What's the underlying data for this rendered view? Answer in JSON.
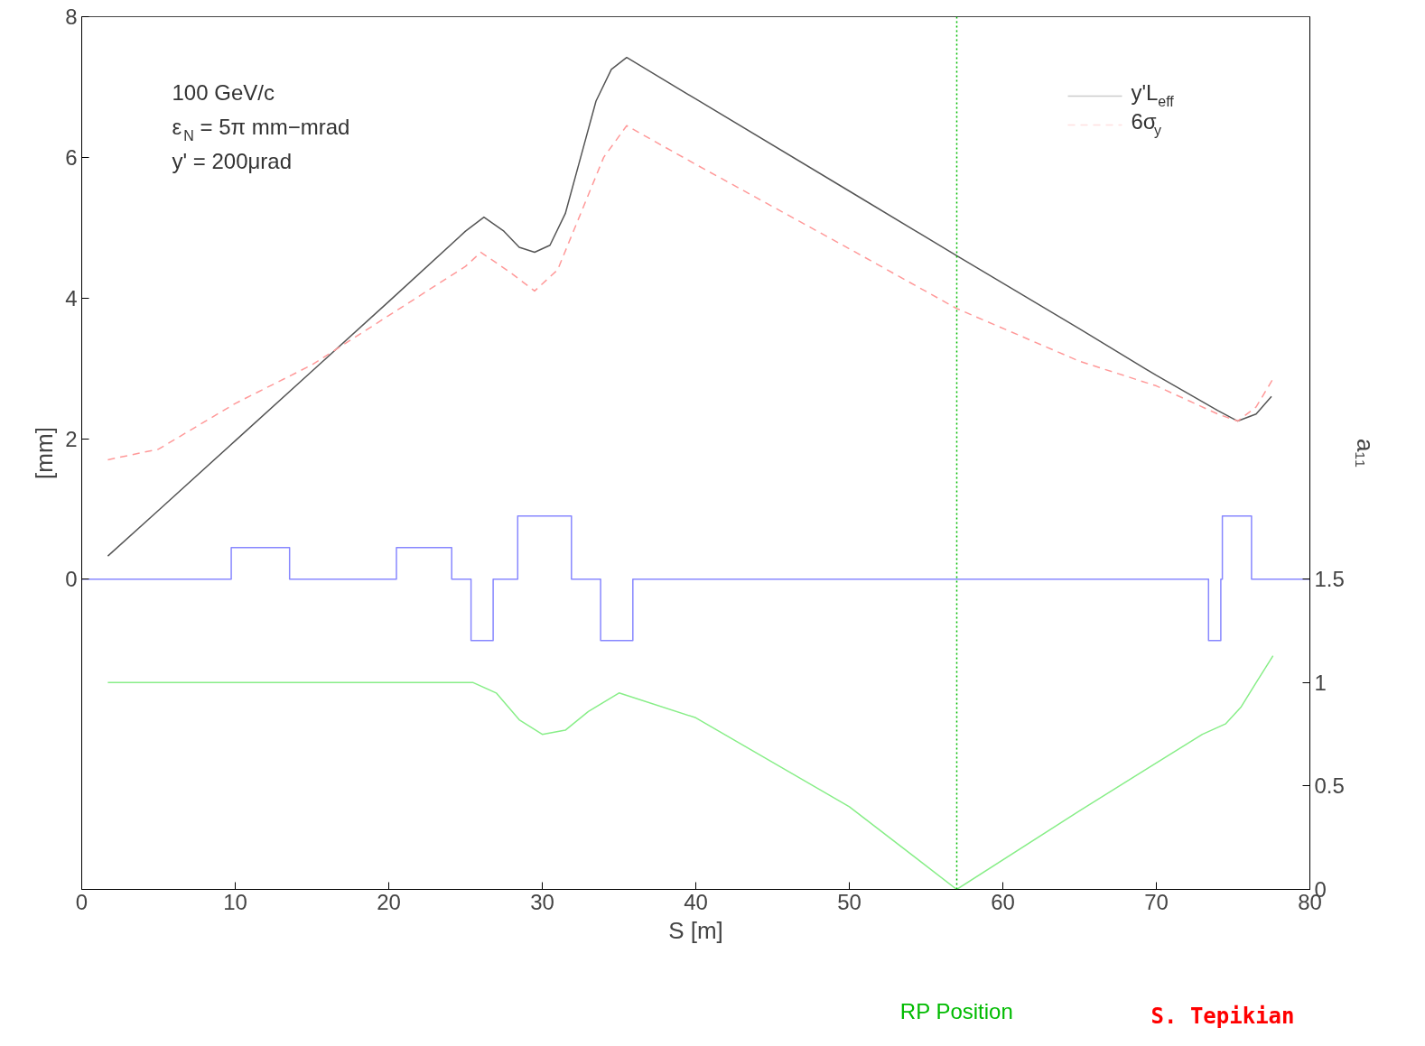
{
  "chart_data": {
    "type": "line",
    "xlabel": "S [m]",
    "ylabel": "[mm]",
    "y2label": "a₁₁",
    "xlim": [
      0,
      80
    ],
    "xticks": [
      0,
      10,
      20,
      30,
      40,
      50,
      60,
      70,
      80
    ],
    "ylim": [
      -4.41,
      8
    ],
    "yticks": [
      0,
      2,
      4,
      6,
      8
    ],
    "y2lim": [
      0,
      4.22
    ],
    "y2ticks": [
      0,
      0.5,
      1,
      1.5
    ],
    "grid": false,
    "legend": "top right",
    "series": [
      {
        "name": "y'L$_{eff}$",
        "color": "#555555",
        "line_style": "solid",
        "x": [
          1.7,
          5,
          10,
          15,
          20,
          25,
          26.2,
          27.5,
          28.5,
          29.5,
          30.5,
          31.5,
          32.5,
          33.5,
          34.5,
          35.5,
          40,
          50,
          57,
          65,
          70,
          74,
          75.3,
          76.5,
          77.5
        ],
        "values": [
          0.33,
          0.98,
          1.97,
          2.96,
          3.95,
          4.95,
          5.15,
          4.95,
          4.72,
          4.65,
          4.75,
          5.2,
          6.0,
          6.8,
          7.25,
          7.42,
          6.83,
          5.52,
          4.6,
          3.56,
          2.9,
          2.4,
          2.25,
          2.35,
          2.6
        ]
      },
      {
        "name": "6σ$_{y}$",
        "color": "#ff9999",
        "line_style": "dashed",
        "x": [
          1.7,
          5,
          10,
          15,
          20,
          25,
          26,
          28,
          29.5,
          31,
          32.5,
          34,
          35.5,
          40,
          50,
          57,
          65,
          70,
          74,
          75.3,
          76.5,
          77.6
        ],
        "values": [
          1.7,
          1.85,
          2.5,
          3.05,
          3.75,
          4.45,
          4.65,
          4.35,
          4.1,
          4.4,
          5.2,
          6.0,
          6.45,
          5.9,
          4.7,
          3.85,
          3.1,
          2.75,
          2.35,
          2.25,
          2.45,
          2.85
        ]
      },
      {
        "type": "step",
        "color": "#8888ff",
        "line_style": "solid",
        "x": [
          0,
          9.74,
          13.54,
          20.5,
          24.1,
          25.36,
          26.8,
          28.4,
          31.9,
          33.8,
          35.9,
          73.4,
          74.2,
          74.3,
          76.2,
          80
        ],
        "values": [
          0,
          0.45,
          0,
          0.45,
          0,
          -0.87,
          0,
          0.9,
          0,
          -0.87,
          0,
          -0.87,
          0,
          0.9,
          0,
          0
        ]
      },
      {
        "color": "#88ee88",
        "axis": "y2",
        "line_style": "solid",
        "x": [
          1.7,
          10,
          20,
          25.5,
          27,
          28.5,
          30,
          31.5,
          33,
          35,
          40,
          50,
          57,
          65,
          73,
          74.5,
          75.5,
          76.5,
          77.6
        ],
        "values": [
          1.0,
          1.0,
          1.0,
          1.0,
          0.95,
          0.82,
          0.75,
          0.77,
          0.86,
          0.95,
          0.83,
          0.4,
          0.0,
          0.38,
          0.75,
          0.8,
          0.88,
          1.0,
          1.13
        ]
      }
    ],
    "ref_lines": [
      {
        "axis": "x",
        "value": 57,
        "label": "RP Position",
        "color": "#00bb00",
        "line_style": "dotted"
      }
    ],
    "annotations": [
      "100 GeV/c",
      "ε$_{N}$ = 5π mm−mrad",
      "y' = 200μrad",
      "S. Tepikian"
    ]
  }
}
